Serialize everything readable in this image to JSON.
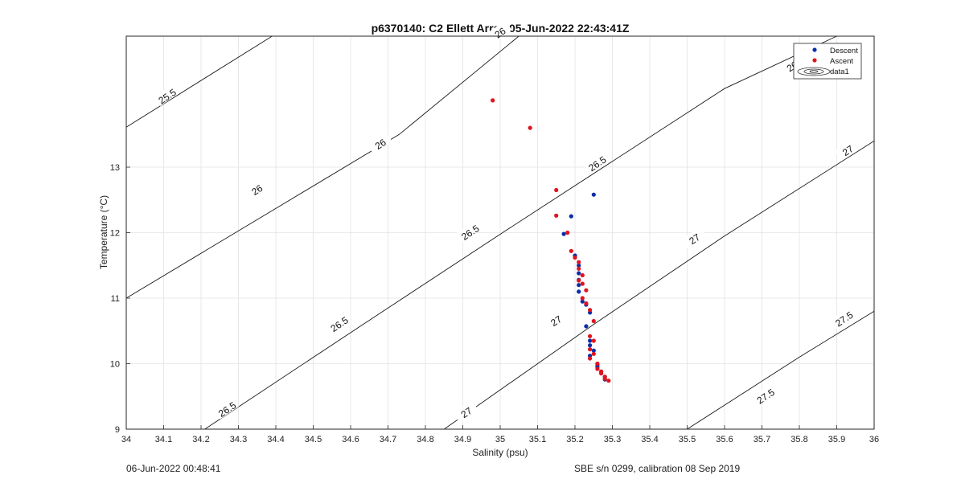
{
  "chart_data": {
    "type": "scatter",
    "title": "p6370140: C2 Ellett Array 05-Jun-2022 22:43:41Z",
    "xlabel": "Salinity (psu)",
    "ylabel": "Temperature (°C)",
    "xlim": [
      34,
      36
    ],
    "ylim": [
      9,
      15
    ],
    "xticks": [
      "34",
      "34.1",
      "34.2",
      "34.3",
      "34.4",
      "34.5",
      "34.6",
      "34.7",
      "34.8",
      "34.9",
      "35",
      "35.1",
      "35.2",
      "35.3",
      "35.4",
      "35.5",
      "35.6",
      "35.7",
      "35.8",
      "35.9",
      "36"
    ],
    "yticks": [
      "9",
      "10",
      "11",
      "12",
      "13"
    ],
    "grid": true,
    "legend_position": "top-right",
    "legend": [
      "Descent",
      "Ascent",
      "data1"
    ],
    "series": [
      {
        "name": "Descent",
        "color": "#0b2ea8",
        "points": [
          [
            35.25,
            12.58
          ],
          [
            35.19,
            12.25
          ],
          [
            35.17,
            11.98
          ],
          [
            35.2,
            11.65
          ],
          [
            35.21,
            11.5
          ],
          [
            35.21,
            11.38
          ],
          [
            35.21,
            11.28
          ],
          [
            35.21,
            11.2
          ],
          [
            35.21,
            11.1
          ],
          [
            35.22,
            10.95
          ],
          [
            35.23,
            10.9
          ],
          [
            35.24,
            10.78
          ],
          [
            35.23,
            10.57
          ],
          [
            35.24,
            10.35
          ],
          [
            35.24,
            10.28
          ],
          [
            35.25,
            10.2
          ],
          [
            35.24,
            10.12
          ],
          [
            35.26,
            9.98
          ],
          [
            35.26,
            9.95
          ],
          [
            35.27,
            9.88
          ],
          [
            35.28,
            9.8
          ],
          [
            35.28,
            9.76
          ]
        ]
      },
      {
        "name": "Ascent",
        "color": "#e0141e",
        "points": [
          [
            34.98,
            14.02
          ],
          [
            35.08,
            13.6
          ],
          [
            35.15,
            12.65
          ],
          [
            35.15,
            12.26
          ],
          [
            35.18,
            12.0
          ],
          [
            35.19,
            11.72
          ],
          [
            35.2,
            11.62
          ],
          [
            35.21,
            11.55
          ],
          [
            35.21,
            11.45
          ],
          [
            35.22,
            11.35
          ],
          [
            35.21,
            11.27
          ],
          [
            35.22,
            11.22
          ],
          [
            35.23,
            11.12
          ],
          [
            35.22,
            11.0
          ],
          [
            35.23,
            10.92
          ],
          [
            35.24,
            10.82
          ],
          [
            35.25,
            10.65
          ],
          [
            35.24,
            10.42
          ],
          [
            35.25,
            10.35
          ],
          [
            35.24,
            10.22
          ],
          [
            35.25,
            10.15
          ],
          [
            35.24,
            10.08
          ],
          [
            35.26,
            10.0
          ],
          [
            35.26,
            9.92
          ],
          [
            35.27,
            9.88
          ],
          [
            35.27,
            9.85
          ],
          [
            35.28,
            9.8
          ],
          [
            35.28,
            9.77
          ],
          [
            35.29,
            9.74
          ]
        ]
      }
    ],
    "contours": {
      "name": "data1",
      "levels": [
        25.5,
        26,
        26.5,
        27,
        27.5
      ],
      "line_labels": [
        {
          "label": "25.5",
          "level": 25.5
        },
        {
          "label": "26",
          "level": 26
        },
        {
          "label": "26",
          "level": 26
        },
        {
          "label": "26",
          "level": 26
        },
        {
          "label": "26.5",
          "level": 26.5
        },
        {
          "label": "26.5",
          "level": 26.5
        },
        {
          "label": "26.5",
          "level": 26.5
        },
        {
          "label": "26.5",
          "level": 26.5
        },
        {
          "label": "26.5",
          "level": 26.5
        },
        {
          "label": "27",
          "level": 27
        },
        {
          "label": "27",
          "level": 27
        },
        {
          "label": "27",
          "level": 27
        },
        {
          "label": "27",
          "level": 27
        },
        {
          "label": "27.5",
          "level": 27.5
        },
        {
          "label": "27.5",
          "level": 27.5
        }
      ]
    }
  },
  "footer": {
    "timestamp": "06-Jun-2022 00:48:41",
    "calibration": "SBE s/n 0299, calibration 08 Sep 2019"
  }
}
